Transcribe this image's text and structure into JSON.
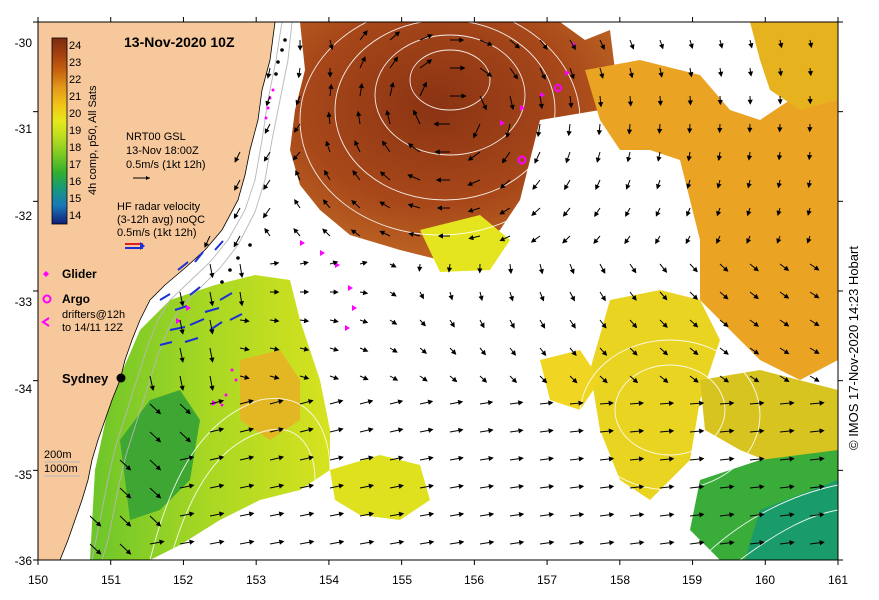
{
  "title": "13-Nov-2020 10Z",
  "colorbar": {
    "label": "4h comp, p50, All Sats",
    "ticks": [
      "24",
      "23",
      "22",
      "21",
      "20",
      "19",
      "18",
      "17",
      "16",
      "15",
      "14"
    ],
    "colors": [
      "#7b2a12",
      "#a4410f",
      "#c8640f",
      "#e39a1a",
      "#f1c418",
      "#e6e81c",
      "#b6dc1f",
      "#7ac824",
      "#34b02c",
      "#15997a",
      "#1a78b8",
      "#1847a5",
      "#0f1f7a"
    ]
  },
  "legend": {
    "gsl_title": "NRT00 GSL",
    "gsl_date": "13-Nov 18:00Z",
    "gsl_scale": "0.5m/s (1kt 12h)",
    "hf_title": "HF radar velocity",
    "hf_avg": "(3-12h avg) noQC",
    "hf_scale": "0.5m/s (1kt 12h)",
    "glider": "Glider",
    "argo": "Argo",
    "drifters_1": "drifters@12h",
    "drifters_2": "to 14/11 12Z"
  },
  "place_labels": {
    "sydney": "Sydney"
  },
  "isobaths": {
    "depth_1": "200m",
    "depth_2": "1000m"
  },
  "axes": {
    "x_ticks": [
      "150",
      "151",
      "152",
      "153",
      "154",
      "155",
      "156",
      "157",
      "158",
      "159",
      "160",
      "161"
    ],
    "y_ticks": [
      "-30",
      "-31",
      "-32",
      "-33",
      "-34",
      "-35",
      "-36"
    ]
  },
  "credit": "© IMOS 17-Nov-2020 14:23 Hobart",
  "colors": {
    "land": "#f7c89b",
    "ocean_no_data": "#ffffff",
    "glider": "#ff00ff",
    "argo": "#ff00ff",
    "drifter": "#ff00ff",
    "arrow": "#000000",
    "hf_radar": "#1a2fd8"
  }
}
